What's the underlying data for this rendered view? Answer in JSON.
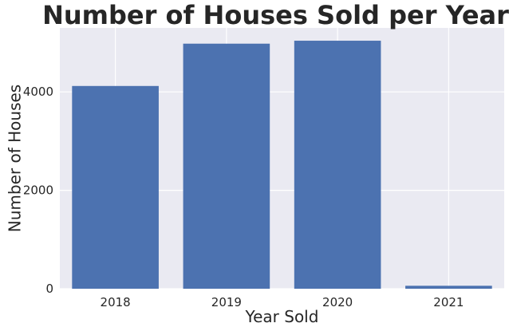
{
  "chart_data": {
    "type": "bar",
    "title": "Number of Houses Sold per Year",
    "xlabel": "Year Sold",
    "ylabel": "Number of Houses",
    "categories": [
      "2018",
      "2019",
      "2020",
      "2021"
    ],
    "values": [
      4120,
      4980,
      5040,
      60
    ],
    "ylim": [
      0,
      5300
    ],
    "yticks": [
      0,
      2000,
      4000
    ],
    "ytick_labels": [
      "0",
      "2000",
      "4000"
    ],
    "grid": true,
    "colors": {
      "bar": "#4c72b0",
      "plot_background": "#eaeaf2",
      "grid": "#ffffff",
      "text": "#262626"
    }
  }
}
